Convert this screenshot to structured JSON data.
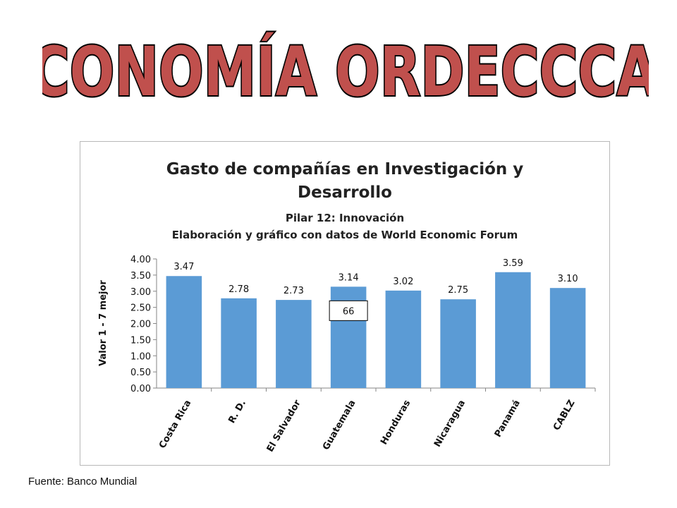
{
  "banner": {
    "text": "ECONOMÍA ORDECCCAC",
    "fill": "#c0504d",
    "stroke": "#000000"
  },
  "chart_data": {
    "type": "bar",
    "title": "Gasto de compañías en Investigación y Desarrollo",
    "title_lines": [
      "Gasto de compañías en Investigación y",
      "Desarrollo"
    ],
    "subtitle_lines": [
      "Pilar 12: Innovación",
      "Elaboración y gráfico con datos de World Economic Forum"
    ],
    "ylabel": "Valor 1 - 7 mejor",
    "xlabel": "",
    "categories": [
      "Costa Rica",
      "R. D.",
      "El Salvador",
      "Guatemala",
      "Honduras",
      "Nicaragua",
      "Panamá",
      "CABLZ"
    ],
    "values": [
      3.47,
      2.78,
      2.73,
      3.14,
      3.02,
      2.75,
      3.59,
      3.1
    ],
    "value_labels": [
      "3.47",
      "2.78",
      "2.73",
      "3.14",
      "3.02",
      "2.75",
      "3.59",
      "3.10"
    ],
    "ylim": [
      0,
      4
    ],
    "yticks": [
      "0.00",
      "0.50",
      "1.00",
      "1.50",
      "2.00",
      "2.50",
      "3.00",
      "3.50",
      "4.00"
    ],
    "grid": false,
    "legend": "none",
    "bar_color": "#5b9bd5",
    "annotation": {
      "text": "66",
      "category": "Guatemala"
    }
  },
  "footer": {
    "source": "Fuente: Banco Mundial"
  }
}
